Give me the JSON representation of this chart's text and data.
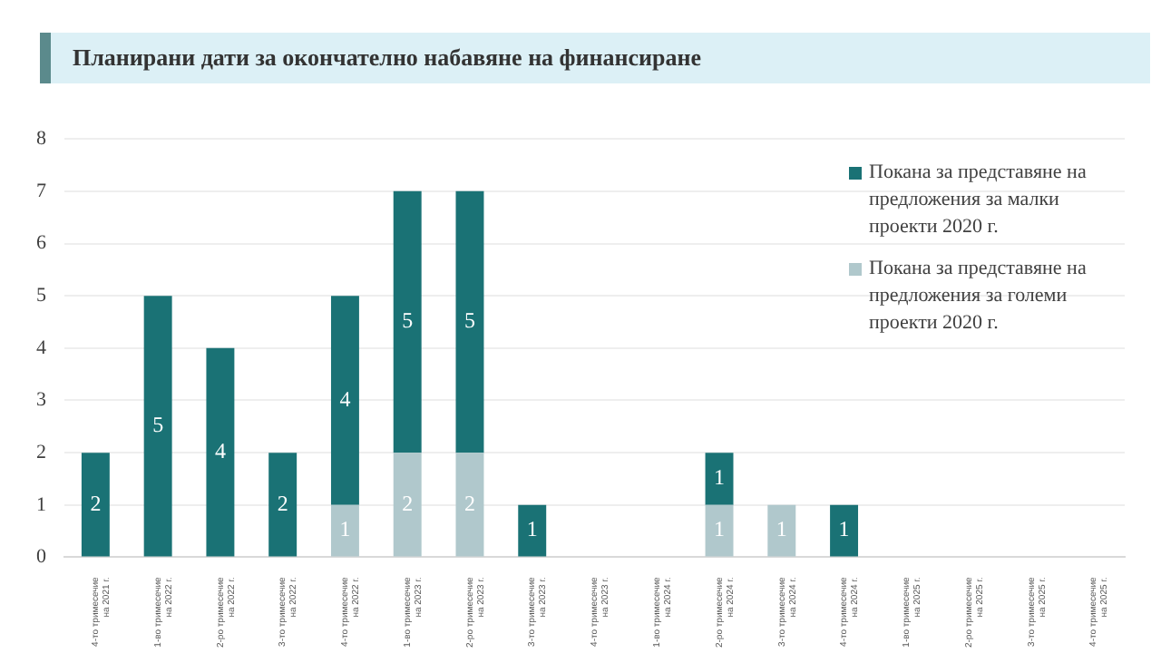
{
  "chart_data": {
    "type": "bar",
    "title": "Планирани дати за окончателно набавяне на финансиране",
    "categories": [
      "4-то тримесечие на 2021 г.",
      "1-во тримесечие на 2022 г.",
      "2-ро тримесечие на 2022 г.",
      "3-то тримесечие на 2022 г.",
      "4-то тримесечие на 2022 г.",
      "1-во тримесечие на 2023 г.",
      "2-ро тримесечие на 2023 г.",
      "3-то тримесечие на 2023 г.",
      "4-то тримесечие на 2023 г.",
      "1-во тримесечие на 2024 г.",
      "2-ро тримесечие на 2024 г.",
      "3-то тримесечие на 2024 г.",
      "4-то тримесечие на 2024 г.",
      "1-во тримесечие на 2025 г.",
      "2-ро тримесечие на 2025 г.",
      "3-то тримесечие на 2025 г.",
      "4-то тримесечие на 2025 г."
    ],
    "stacked": true,
    "series": [
      {
        "name": "Покана за представяне на предложения за големи проекти 2020 г.",
        "color": "#b0c8cc",
        "values": [
          null,
          null,
          null,
          null,
          1,
          2,
          2,
          null,
          null,
          null,
          1,
          1,
          null,
          null,
          null,
          null,
          null
        ]
      },
      {
        "name": "Покана за представяне на предложения за малки проекти 2020 г.",
        "color": "#1a7275",
        "values": [
          2,
          5,
          4,
          2,
          4,
          5,
          5,
          1,
          null,
          null,
          1,
          null,
          1,
          null,
          null,
          null,
          null
        ]
      }
    ],
    "ylim": [
      0,
      8
    ],
    "yticks": [
      0,
      1,
      2,
      3,
      4,
      5,
      6,
      7,
      8
    ],
    "grid": "y",
    "legend": "top right",
    "data_labels": true
  }
}
